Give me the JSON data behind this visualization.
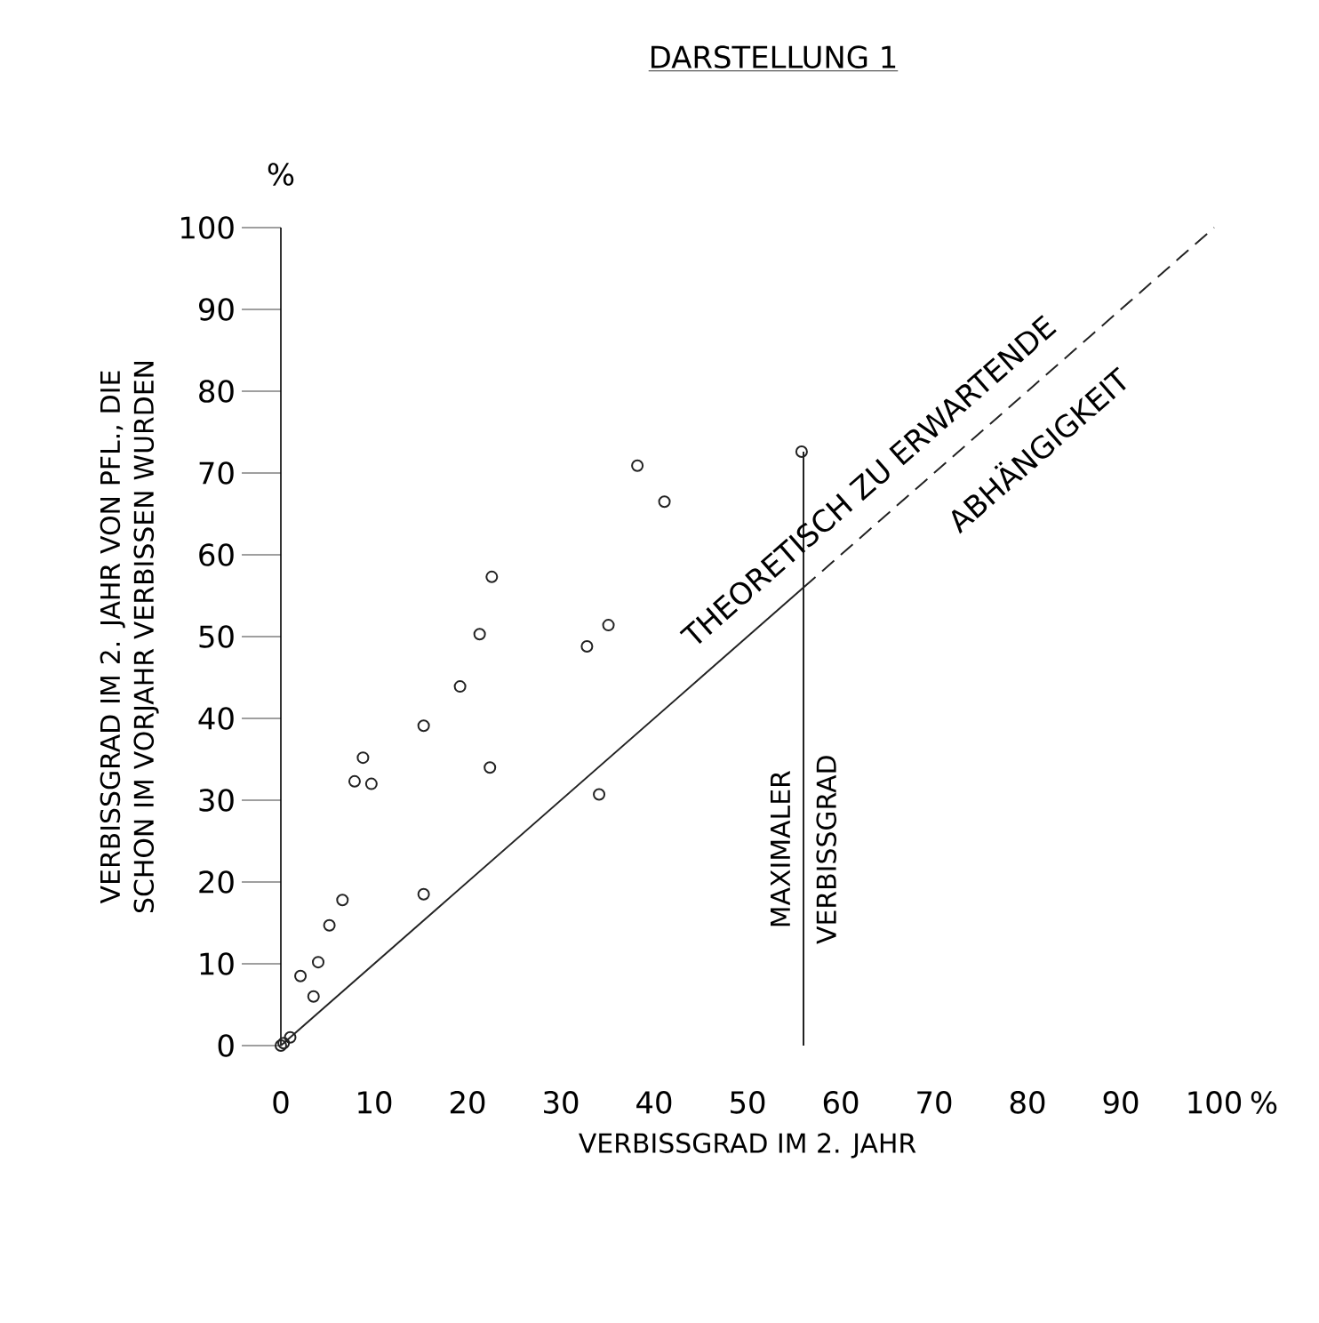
{
  "chart_data": {
    "type": "scatter",
    "title": "DARSTELLUNG 1",
    "xlabel": "VERBISSGRAD IM  2. JAHR",
    "ylabel": "VERBISSGRAD IM 2. JAHR VON PFL., DIE SCHON IM VORJAHR VERBISSEN WURDEN",
    "xlim": [
      0,
      100
    ],
    "ylim": [
      0,
      100
    ],
    "xticks": [
      0,
      10,
      20,
      30,
      40,
      50,
      60,
      70,
      80,
      90,
      100
    ],
    "yticks": [
      0,
      10,
      20,
      30,
      40,
      50,
      60,
      70,
      80,
      90,
      100
    ],
    "grid": false,
    "series": [
      {
        "color": "#222222",
        "marker": "circle",
        "x": [
          0,
          0.3,
          1,
          2.1,
          3.5,
          4.0,
          5.2,
          6.6,
          7.9,
          8.8,
          9.7,
          15.3,
          15.3,
          19.2,
          21.3,
          22.4,
          22.6,
          32.8,
          34.1,
          35.1,
          38.2,
          41.1,
          55.8
        ],
        "values": [
          0,
          0.3,
          1,
          8.5,
          6,
          10.2,
          14.7,
          17.8,
          32.3,
          35.2,
          32.0,
          18.5,
          39.1,
          43.9,
          50.3,
          34.0,
          57.3,
          48.8,
          30.7,
          51.4,
          70.9,
          66.5,
          72.6
        ]
      },
      {
        "type": "line",
        "color": "#222222",
        "marker": "none",
        "line_style": "solid",
        "x": [
          0,
          56
        ],
        "values": [
          0,
          56
        ]
      },
      {
        "type": "line",
        "color": "#222222",
        "marker": "none",
        "line_style": "dashed",
        "x": [
          56,
          100
        ],
        "values": [
          56,
          100
        ]
      },
      {
        "type": "line",
        "color": "#222222",
        "marker": "none",
        "line_style": "solid",
        "x": [
          56,
          56
        ],
        "values": [
          0,
          72.6
        ]
      }
    ],
    "annotations": [
      "THEORETISCH ZU ERWARTENDE",
      "ABHÄNGIGKEIT",
      "MAXIMALER VERBISSGRAD",
      "%",
      "%"
    ]
  }
}
